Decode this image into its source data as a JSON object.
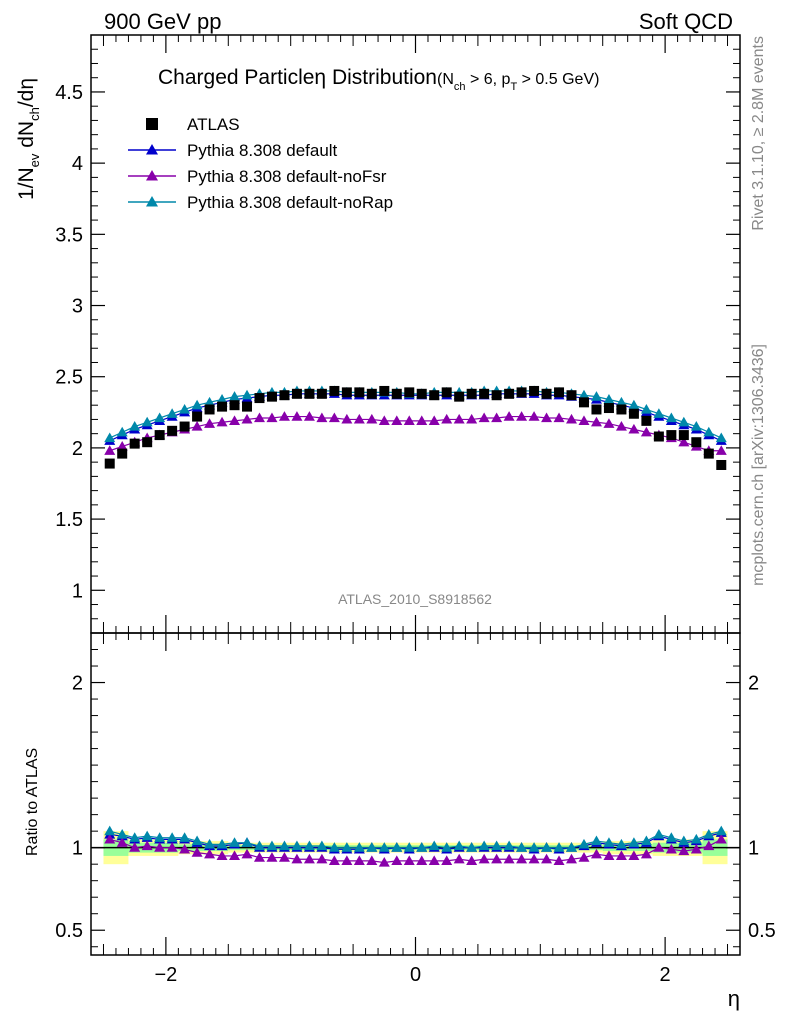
{
  "header": {
    "left": "900 GeV pp",
    "right": "Soft QCD"
  },
  "side_labels": {
    "top": "Rivet 3.1.10, ≥ 2.8M events",
    "bottom": "mcplots.cern.ch [arXiv:1306.3436]"
  },
  "watermark": "ATLAS_2010_S8918562",
  "title": {
    "main": "Charged Particle",
    "eta": "η",
    "main2": " Distribution",
    "cut": {
      "open": "(N",
      "nch_sub": "ch",
      "mid": " > 6, p",
      "pt_sub": "T",
      "close": " > 0.5 GeV)"
    }
  },
  "y_label": {
    "a": "1/N",
    "a_sub": "ev",
    "b": " dN",
    "b_sub": "ch",
    "c": "/dη"
  },
  "ratio_ylabel": "Ratio to ATLAS",
  "x_label": "η",
  "colors": {
    "atlas": "#000000",
    "default": "#0000cc",
    "noFsr": "#8800aa",
    "noRap": "#0088aa",
    "band_yellow": "#ffff99",
    "band_green": "#99ff99"
  },
  "legend": [
    {
      "label": "ATLAS",
      "style": "square",
      "color": "#000000"
    },
    {
      "label": "Pythia 8.308 default",
      "style": "triangle",
      "color": "#0000cc"
    },
    {
      "label": "Pythia 8.308 default-noFsr",
      "style": "triangle",
      "color": "#8800aa"
    },
    {
      "label": "Pythia 8.308 default-noRap",
      "style": "triangle",
      "color": "#0088aa"
    }
  ],
  "chart_data": {
    "type": "scatter",
    "xlabel": "η",
    "ylabel": "1/Nev dNch/dη",
    "xlim": [
      -2.6,
      2.6
    ],
    "ylim_main": [
      0.7,
      4.9
    ],
    "ylim_ratio": [
      0.35,
      2.3
    ],
    "main_yticks": [
      "1",
      "1.5",
      "2",
      "2.5",
      "3",
      "3.5",
      "4",
      "4.5"
    ],
    "main_ytick_values": [
      1,
      1.5,
      2,
      2.5,
      3,
      3.5,
      4,
      4.5
    ],
    "ratio_yticks": [
      "0.5",
      "1",
      "2"
    ],
    "ratio_ytick_values": [
      0.5,
      1,
      2
    ],
    "xticks": [
      "−2",
      "0",
      "2"
    ],
    "xtick_values": [
      -2,
      0,
      2
    ],
    "x": [
      -2.45,
      -2.35,
      -2.25,
      -2.15,
      -2.05,
      -1.95,
      -1.85,
      -1.75,
      -1.65,
      -1.55,
      -1.45,
      -1.35,
      -1.25,
      -1.15,
      -1.05,
      -0.95,
      -0.85,
      -0.75,
      -0.65,
      -0.55,
      -0.45,
      -0.35,
      -0.25,
      -0.15,
      -0.05,
      0.05,
      0.15,
      0.25,
      0.35,
      0.45,
      0.55,
      0.65,
      0.75,
      0.85,
      0.95,
      1.05,
      1.15,
      1.25,
      1.35,
      1.45,
      1.55,
      1.65,
      1.75,
      1.85,
      1.95,
      2.05,
      2.15,
      2.25,
      2.35,
      2.45
    ],
    "series": [
      {
        "name": "ATLAS",
        "values": [
          1.89,
          1.96,
          2.03,
          2.04,
          2.09,
          2.12,
          2.15,
          2.22,
          2.27,
          2.29,
          2.3,
          2.29,
          2.35,
          2.36,
          2.37,
          2.38,
          2.38,
          2.38,
          2.4,
          2.39,
          2.39,
          2.38,
          2.4,
          2.38,
          2.39,
          2.38,
          2.37,
          2.39,
          2.36,
          2.38,
          2.38,
          2.37,
          2.38,
          2.39,
          2.4,
          2.38,
          2.39,
          2.37,
          2.32,
          2.27,
          2.28,
          2.27,
          2.24,
          2.19,
          2.08,
          2.09,
          2.09,
          2.04,
          1.96,
          1.88
        ]
      },
      {
        "name": "Pythia 8.308 default",
        "values": [
          2.05,
          2.09,
          2.13,
          2.16,
          2.19,
          2.22,
          2.25,
          2.28,
          2.3,
          2.32,
          2.34,
          2.35,
          2.36,
          2.37,
          2.37,
          2.38,
          2.38,
          2.38,
          2.38,
          2.37,
          2.37,
          2.37,
          2.37,
          2.37,
          2.37,
          2.37,
          2.37,
          2.37,
          2.37,
          2.37,
          2.37,
          2.38,
          2.38,
          2.38,
          2.38,
          2.37,
          2.37,
          2.36,
          2.35,
          2.34,
          2.32,
          2.3,
          2.28,
          2.25,
          2.22,
          2.19,
          2.16,
          2.13,
          2.09,
          2.05
        ]
      },
      {
        "name": "Pythia 8.308 default-noFsr",
        "values": [
          1.98,
          2.01,
          2.04,
          2.07,
          2.09,
          2.11,
          2.13,
          2.15,
          2.17,
          2.18,
          2.19,
          2.2,
          2.21,
          2.21,
          2.22,
          2.22,
          2.22,
          2.21,
          2.21,
          2.2,
          2.2,
          2.2,
          2.19,
          2.19,
          2.19,
          2.19,
          2.19,
          2.2,
          2.2,
          2.2,
          2.21,
          2.21,
          2.22,
          2.22,
          2.22,
          2.21,
          2.21,
          2.2,
          2.19,
          2.18,
          2.17,
          2.15,
          2.13,
          2.11,
          2.09,
          2.07,
          2.04,
          2.01,
          1.98,
          1.98
        ]
      },
      {
        "name": "Pythia 8.308 default-noRap",
        "values": [
          2.07,
          2.11,
          2.15,
          2.18,
          2.21,
          2.24,
          2.27,
          2.3,
          2.32,
          2.34,
          2.36,
          2.37,
          2.38,
          2.39,
          2.39,
          2.4,
          2.4,
          2.4,
          2.4,
          2.39,
          2.39,
          2.39,
          2.39,
          2.39,
          2.38,
          2.38,
          2.39,
          2.39,
          2.39,
          2.39,
          2.4,
          2.4,
          2.4,
          2.4,
          2.4,
          2.39,
          2.39,
          2.38,
          2.37,
          2.36,
          2.34,
          2.32,
          2.3,
          2.27,
          2.24,
          2.21,
          2.18,
          2.15,
          2.11,
          2.07
        ]
      }
    ],
    "ratio_series": [
      {
        "name": "Pythia 8.308 default",
        "values": [
          1.08,
          1.07,
          1.05,
          1.06,
          1.05,
          1.05,
          1.05,
          1.03,
          1.01,
          1.01,
          1.02,
          1.03,
          1.0,
          1.0,
          1.0,
          1.0,
          1.0,
          1.0,
          0.99,
          0.99,
          0.99,
          1.0,
          0.99,
          1.0,
          0.99,
          1.0,
          1.0,
          0.99,
          1.0,
          1.0,
          1.0,
          1.0,
          1.0,
          1.0,
          0.99,
          1.0,
          0.99,
          1.0,
          1.01,
          1.03,
          1.02,
          1.01,
          1.02,
          1.03,
          1.07,
          1.05,
          1.03,
          1.04,
          1.07,
          1.09
        ]
      },
      {
        "name": "Pythia 8.308 default-noFsr",
        "values": [
          1.05,
          1.03,
          1.0,
          1.01,
          1.0,
          1.0,
          0.99,
          0.97,
          0.96,
          0.95,
          0.95,
          0.96,
          0.94,
          0.94,
          0.94,
          0.93,
          0.93,
          0.93,
          0.92,
          0.92,
          0.92,
          0.92,
          0.91,
          0.92,
          0.92,
          0.92,
          0.92,
          0.92,
          0.93,
          0.92,
          0.93,
          0.93,
          0.93,
          0.93,
          0.93,
          0.93,
          0.92,
          0.93,
          0.94,
          0.96,
          0.95,
          0.95,
          0.95,
          0.96,
          1.0,
          0.99,
          0.98,
          0.99,
          1.01,
          1.05
        ]
      },
      {
        "name": "Pythia 8.308 default-noRap",
        "values": [
          1.1,
          1.08,
          1.06,
          1.07,
          1.06,
          1.06,
          1.06,
          1.04,
          1.02,
          1.02,
          1.03,
          1.03,
          1.01,
          1.01,
          1.01,
          1.01,
          1.01,
          1.01,
          1.0,
          1.0,
          1.0,
          1.0,
          1.0,
          1.0,
          1.0,
          1.0,
          1.01,
          1.0,
          1.01,
          1.0,
          1.01,
          1.01,
          1.01,
          1.0,
          1.0,
          1.0,
          1.0,
          1.0,
          1.02,
          1.04,
          1.03,
          1.02,
          1.03,
          1.04,
          1.08,
          1.06,
          1.04,
          1.05,
          1.08,
          1.1
        ]
      }
    ],
    "uncertainty_bands": {
      "edges": [
        -2.5,
        -2.3,
        -1.9,
        -1.5,
        0,
        1.5,
        1.9,
        2.3,
        2.5
      ],
      "yellow": [
        [
          0.9,
          1.1
        ],
        [
          0.95,
          1.05
        ],
        [
          0.96,
          1.04
        ],
        [
          0.97,
          1.03
        ],
        [
          0.97,
          1.03
        ],
        [
          0.96,
          1.04
        ],
        [
          0.95,
          1.05
        ],
        [
          0.9,
          1.1
        ]
      ],
      "green": [
        [
          0.95,
          1.05
        ],
        [
          0.97,
          1.03
        ],
        [
          0.98,
          1.02
        ],
        [
          0.985,
          1.015
        ],
        [
          0.985,
          1.015
        ],
        [
          0.98,
          1.02
        ],
        [
          0.97,
          1.03
        ],
        [
          0.95,
          1.05
        ]
      ]
    }
  }
}
